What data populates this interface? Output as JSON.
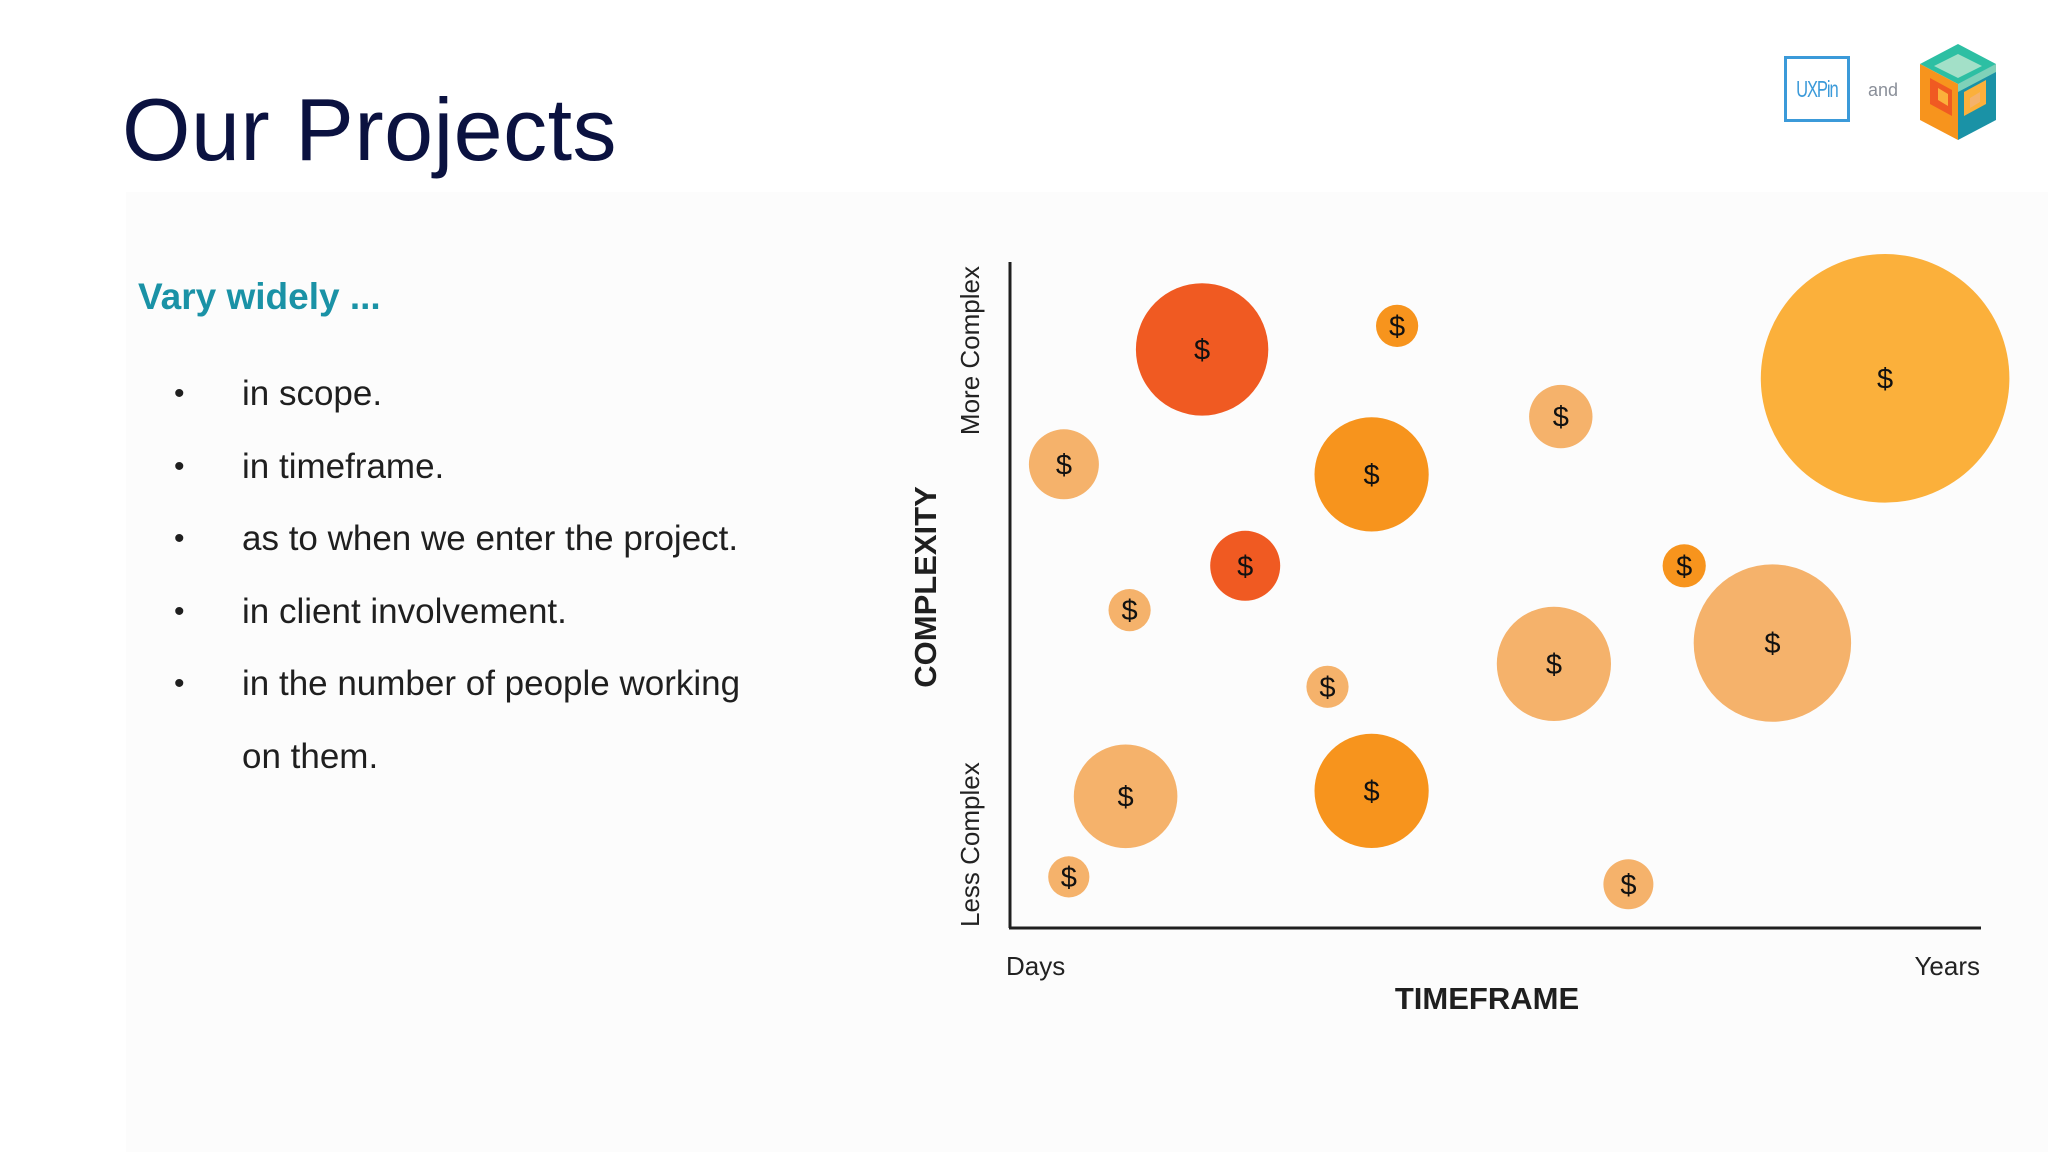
{
  "slide": {
    "title": "Our Projects",
    "subtitle": "Vary widely ...",
    "bullets": [
      "in scope.",
      "in timeframe.",
      "as to when we enter the project.",
      "in client involvement.",
      "in the number of people working",
      "on them."
    ]
  },
  "logos": {
    "uxpin": "UXPin",
    "and": "and",
    "partner_icon": "cube-logo-icon"
  },
  "chart_data": {
    "type": "scatter",
    "xlabel": "TIMEFRAME",
    "ylabel": "COMPLEXITY",
    "x_tick_labels": [
      "Days",
      "Years"
    ],
    "y_tick_labels": [
      "Less Complex",
      "More Complex"
    ],
    "xlim": [
      0,
      100
    ],
    "ylim": [
      0,
      100
    ],
    "marker_label": "$",
    "colors": {
      "red_orange": "#f05a22",
      "orange": "#f7941d",
      "light_orange": "#f5b26b",
      "yellow": "#fbb03b"
    },
    "bubbles": [
      {
        "x": 19.6,
        "y": 86.1,
        "size": 13.8,
        "color": "red_orange"
      },
      {
        "x": 39.5,
        "y": 89.6,
        "size": 4.4,
        "color": "orange"
      },
      {
        "x": 89.3,
        "y": 81.8,
        "size": 25.9,
        "color": "yellow"
      },
      {
        "x": 56.2,
        "y": 76.1,
        "size": 6.6,
        "color": "light_orange"
      },
      {
        "x": 5.5,
        "y": 69.0,
        "size": 7.3,
        "color": "light_orange"
      },
      {
        "x": 36.9,
        "y": 67.5,
        "size": 11.9,
        "color": "orange"
      },
      {
        "x": 24.0,
        "y": 53.9,
        "size": 7.3,
        "color": "red_orange"
      },
      {
        "x": 68.8,
        "y": 53.9,
        "size": 4.5,
        "color": "orange"
      },
      {
        "x": 12.2,
        "y": 47.3,
        "size": 4.4,
        "color": "light_orange"
      },
      {
        "x": 77.8,
        "y": 42.4,
        "size": 16.4,
        "color": "light_orange"
      },
      {
        "x": 55.5,
        "y": 39.3,
        "size": 11.9,
        "color": "light_orange"
      },
      {
        "x": 32.4,
        "y": 35.9,
        "size": 4.4,
        "color": "light_orange"
      },
      {
        "x": 11.8,
        "y": 19.6,
        "size": 10.8,
        "color": "light_orange"
      },
      {
        "x": 36.9,
        "y": 20.4,
        "size": 11.9,
        "color": "orange"
      },
      {
        "x": 6.0,
        "y": 7.6,
        "size": 4.3,
        "color": "light_orange"
      },
      {
        "x": 63.1,
        "y": 6.5,
        "size": 5.2,
        "color": "light_orange"
      }
    ]
  }
}
